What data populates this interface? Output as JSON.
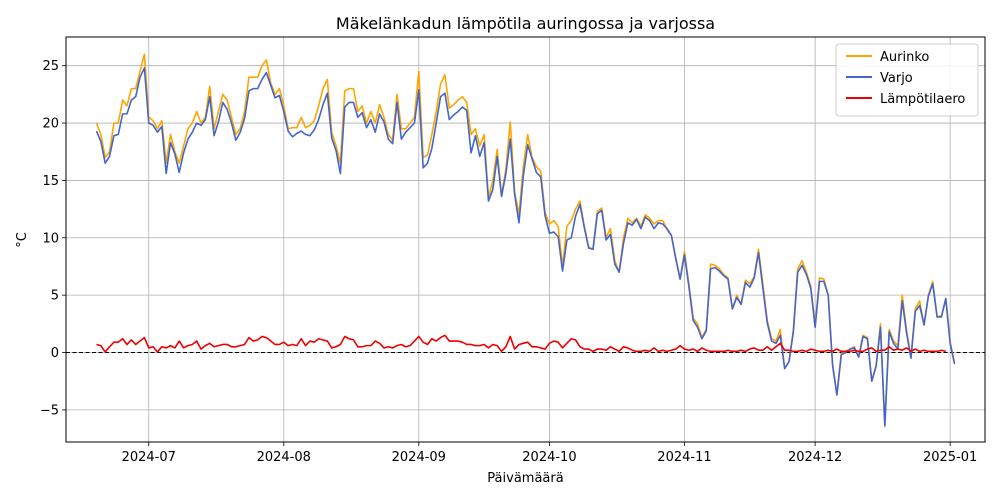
{
  "chart_data": {
    "type": "line",
    "title": "Mäkelänkadun lämpötila auringossa ja varjossa",
    "xlabel": "Päivämäärä",
    "ylabel": "°C",
    "x_start": "2024-06-19",
    "x_end": "2024-12-31",
    "xlim": [
      "2024-06-12",
      "2025-01-09"
    ],
    "ylim": [
      -7.8,
      27.5
    ],
    "x_ticks": [
      "2024-07-01",
      "2024-08-01",
      "2024-09-01",
      "2024-10-01",
      "2024-11-01",
      "2024-12-01",
      "2025-01-01"
    ],
    "x_tick_labels": [
      "2024-07",
      "2024-08",
      "2024-09",
      "2024-10",
      "2024-11",
      "2024-12",
      "2025-01"
    ],
    "y_ticks": [
      -5,
      0,
      5,
      10,
      15,
      20,
      25
    ],
    "y_tick_labels": [
      "−5",
      "0",
      "5",
      "10",
      "15",
      "20",
      "25"
    ],
    "grid": true,
    "legend_position": "top-right",
    "reference_line": {
      "y": 0,
      "style": "dashed",
      "color": "#000000"
    },
    "series": [
      {
        "name": "Aurinko",
        "color": "#ffa500",
        "values": [
          20,
          19,
          17,
          17.5,
          20,
          20,
          22,
          21.5,
          23,
          23,
          24.5,
          26,
          20.5,
          20.2,
          19.5,
          20.2,
          16.5,
          19,
          17.5,
          16.5,
          18,
          19.5,
          20,
          21,
          20,
          20.5,
          23.2,
          19.5,
          21,
          22.5,
          22,
          20.5,
          19,
          19.5,
          21,
          24,
          24,
          24,
          25,
          25.5,
          23.5,
          22.5,
          23,
          21.5,
          19.5,
          19.6,
          19.6,
          20.5,
          19.6,
          19.8,
          20.2,
          21.5,
          23,
          23.8,
          19.2,
          18,
          16.5,
          22.8,
          23,
          23,
          21,
          21.5,
          20,
          21,
          20,
          21.6,
          20.5,
          19,
          18.5,
          22.5,
          19.5,
          19.5,
          20,
          20.5,
          24.5,
          17,
          17.2,
          19,
          21,
          23.4,
          24.2,
          21.3,
          21.6,
          22,
          22.3,
          21.8,
          19,
          19.5,
          18,
          19,
          13.5,
          15,
          17.7,
          13.7,
          16,
          20.1,
          14,
          12,
          16.2,
          19,
          17,
          16.2,
          15.8,
          12.2,
          11.2,
          11.5,
          11,
          7.5,
          11,
          11.5,
          12.5,
          13.2,
          11,
          9.2,
          9,
          12.3,
          12.6,
          10,
          10.8,
          8,
          7,
          10,
          11.7,
          11.3,
          11.7,
          11,
          12,
          11.7,
          11.2,
          11.5,
          11.5,
          10.7,
          10.2,
          8.2,
          6.4,
          8.8,
          6,
          3,
          2.5,
          1.3,
          2,
          7.7,
          7.6,
          7.3,
          6.8,
          6.5,
          3.8,
          5,
          4.2,
          6.3,
          6,
          6.6,
          9,
          6,
          2.8,
          1.2,
          1,
          2,
          -1.4,
          -0.8,
          2,
          7.3,
          8,
          7,
          5.8,
          2.3,
          6.5,
          6.4,
          5,
          -1,
          -3.7,
          -0.1,
          0.1,
          0.3,
          0.5,
          -0.3,
          1.5,
          1.3,
          -2.5,
          -1.1,
          2.5,
          -6.3,
          2,
          1,
          0.6,
          5,
          1.9,
          -0.4,
          3.8,
          4.5,
          2.4,
          5,
          6.2,
          3.1,
          3.2,
          4.7,
          0.9,
          -0.9
        ]
      },
      {
        "name": "Varjo",
        "color": "#4466cc",
        "values": [
          19.3,
          18.4,
          16.5,
          17.1,
          18.9,
          19,
          20.8,
          20.8,
          22,
          22.3,
          24,
          24.8,
          20,
          19.8,
          19.2,
          19.7,
          15.6,
          18.3,
          17.3,
          15.7,
          17.4,
          18.6,
          19.2,
          20,
          19.8,
          20.3,
          22.3,
          18.9,
          20.1,
          21.8,
          21.2,
          20,
          18.5,
          19.2,
          20.4,
          22.8,
          23,
          23,
          23.8,
          24.4,
          23.3,
          22.2,
          22.4,
          21,
          19.3,
          18.8,
          19.1,
          19.3,
          19,
          18.9,
          19.4,
          20.3,
          21.6,
          22.6,
          18.7,
          17.6,
          15.6,
          21.4,
          21.8,
          21.8,
          20.5,
          20.9,
          19.6,
          20.3,
          19.2,
          20.8,
          20.1,
          18.6,
          18.2,
          21.8,
          18.6,
          19.2,
          19.6,
          20,
          22.9,
          16.1,
          16.5,
          17.8,
          20,
          22.3,
          22.6,
          20.3,
          20.7,
          21,
          21.4,
          21.1,
          17.4,
          18.9,
          17.1,
          18.3,
          13.2,
          14.2,
          17.1,
          13.6,
          15.6,
          18.6,
          13.8,
          11.3,
          15.4,
          18.1,
          16.9,
          15.7,
          15.3,
          11.9,
          10.4,
          10.5,
          10.1,
          7.1,
          9.8,
          10,
          11.9,
          12.9,
          10.9,
          9.1,
          9,
          12.1,
          12.4,
          9.8,
          10.3,
          7.7,
          7,
          9.5,
          11.3,
          11.1,
          11.6,
          10.8,
          11.8,
          11.5,
          10.8,
          11.3,
          11.2,
          10.8,
          10.2,
          8.2,
          6.4,
          8.5,
          5.8,
          2.8,
          2.2,
          1.2,
          1.9,
          7.3,
          7.4,
          7.1,
          6.7,
          6.4,
          3.8,
          4.8,
          4.2,
          6.1,
          5.7,
          6.5,
          8.7,
          5.6,
          2.6,
          1,
          0.8,
          1.5,
          -1.4,
          -0.8,
          1.8,
          7,
          7.6,
          6.8,
          5.6,
          2.2,
          6.2,
          6.2,
          5,
          -1.1,
          -3.7,
          -0.2,
          0,
          0.3,
          0.4,
          -0.4,
          1.4,
          1.2,
          -2.5,
          -1.2,
          2.2,
          -6.4,
          1.8,
          0.8,
          0.3,
          4.5,
          1.7,
          -0.5,
          3.6,
          4.1,
          2.4,
          4.9,
          6,
          3.1,
          3.1,
          4.7,
          0.8,
          -1
        ]
      },
      {
        "name": "Lämpötilaero",
        "color": "#ee0000",
        "values": [
          0.7,
          0.6,
          0.05,
          0.5,
          0.9,
          0.9,
          1.2,
          0.7,
          1.1,
          0.7,
          1.0,
          1.3,
          0.4,
          0.5,
          0.05,
          0.5,
          0.4,
          0.6,
          0.4,
          1.0,
          0.4,
          0.6,
          0.7,
          1.0,
          0.3,
          0.6,
          0.8,
          0.5,
          0.6,
          0.7,
          0.7,
          0.5,
          0.5,
          0.6,
          0.7,
          1.3,
          1.0,
          1.1,
          1.4,
          1.3,
          1.0,
          0.7,
          0.7,
          0.9,
          0.6,
          0.7,
          0.6,
          1.2,
          0.6,
          1.0,
          0.9,
          1.2,
          1.1,
          1.0,
          0.4,
          0.5,
          0.7,
          1.4,
          1.2,
          1.1,
          0.5,
          0.5,
          0.6,
          0.6,
          1.0,
          0.8,
          0.4,
          0.5,
          0.4,
          0.6,
          0.7,
          0.5,
          0.6,
          1.0,
          1.4,
          0.9,
          0.7,
          1.2,
          1.0,
          1.3,
          1.5,
          1.0,
          1.0,
          1.0,
          0.9,
          0.7,
          0.7,
          0.6,
          0.6,
          0.7,
          0.4,
          0.7,
          0.6,
          0.1,
          0.5,
          1.4,
          0.3,
          0.7,
          0.8,
          0.9,
          0.5,
          0.5,
          0.4,
          0.3,
          0.8,
          1.0,
          0.9,
          0.4,
          0.8,
          1.2,
          1.1,
          0.5,
          0.3,
          0.3,
          0.1,
          0.3,
          0.3,
          0.2,
          0.5,
          0.3,
          0.1,
          0.5,
          0.4,
          0.2,
          0.1,
          0.1,
          0.2,
          0.1,
          0.4,
          0.1,
          0.2,
          0.1,
          0.2,
          0.3,
          0.6,
          0.3,
          0.2,
          0.3,
          0.1,
          0.4,
          0.2,
          0.1,
          0.1,
          0.1,
          0.1,
          0.2,
          0.1,
          0.1,
          0.2,
          0.1,
          0.3,
          0.4,
          0.2,
          0.2,
          0.5,
          0.2,
          0.5,
          0.8,
          0.2,
          0.2,
          0.1,
          0.1,
          0.2,
          0.1,
          0.3,
          0.2,
          0.1,
          0.1,
          0.2,
          0.1,
          0.3,
          0.1,
          0.1,
          0.1,
          0.2,
          0.1,
          0.1,
          0.3,
          0.4,
          0.1,
          0.2,
          0.2,
          0.5,
          0.2,
          0.3,
          0.2,
          0.4,
          0.1,
          0.3,
          0.1,
          0.2,
          0.1,
          0.1,
          0.1,
          0.2,
          0.1
        ]
      }
    ]
  }
}
